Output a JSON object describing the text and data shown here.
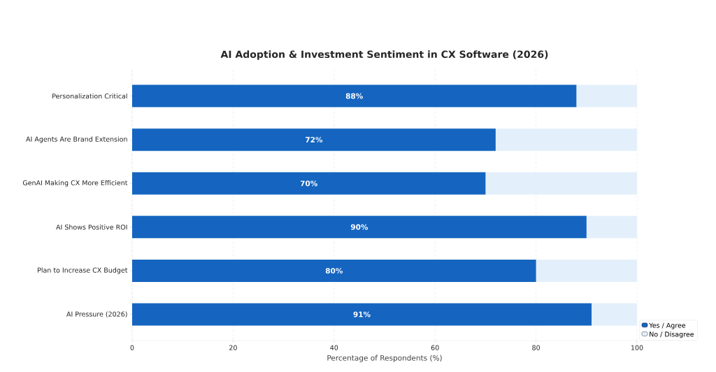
{
  "chart_data": {
    "type": "bar",
    "orientation": "horizontal",
    "stacked": true,
    "title": "AI Adoption & Investment Sentiment in CX Software (2026)",
    "xlabel": "Percentage of Respondents (%)",
    "categories": [
      "Personalization Critical",
      "AI Agents Are Brand Extension",
      "GenAI Making CX More Efficient",
      "AI Shows Positive ROI",
      "Plan to Increase CX Budget",
      "AI Pressure (2026)"
    ],
    "series": [
      {
        "name": "Yes / Agree",
        "color": "#1565c0",
        "values": [
          88,
          72,
          70,
          90,
          80,
          91
        ],
        "value_labels": [
          "88%",
          "72%",
          "70%",
          "90%",
          "80%",
          "91%"
        ]
      },
      {
        "name": "No / Disagree",
        "color": "#e3f0fb",
        "values": [
          12,
          28,
          30,
          10,
          20,
          9
        ]
      }
    ],
    "xlim": [
      0,
      100
    ],
    "xticks": [
      0,
      20,
      40,
      60,
      80,
      100
    ],
    "grid": "x",
    "legend": "bottom right"
  }
}
